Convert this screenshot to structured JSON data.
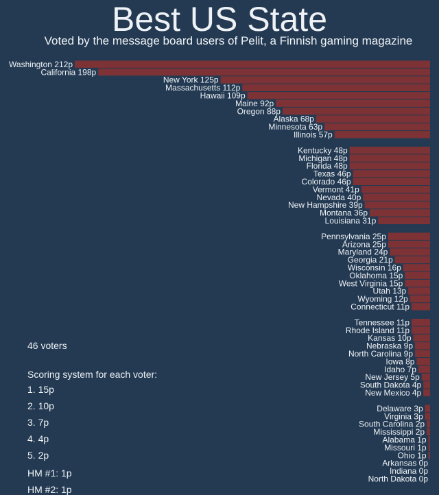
{
  "chart_data": {
    "type": "bar",
    "orientation": "horizontal",
    "title": "Best US State",
    "subtitle": "Voted by the message board users of Pelit, a Finnish gaming magazine",
    "unit_suffix": "p",
    "bar_color": "#7d3236",
    "background_color": "#243a52",
    "grid": false,
    "groups": [
      [
        [
          "Washington",
          212
        ],
        [
          "California",
          198
        ],
        [
          "New York",
          125
        ],
        [
          "Massachusetts",
          112
        ],
        [
          "Hawaii",
          109
        ],
        [
          "Maine",
          92
        ],
        [
          "Oregon",
          88
        ],
        [
          "Alaska",
          68
        ],
        [
          "Minnesota",
          63
        ],
        [
          "Illinois",
          57
        ]
      ],
      [
        [
          "Kentucky",
          48
        ],
        [
          "Michigan",
          48
        ],
        [
          "Florida",
          48
        ],
        [
          "Texas",
          46
        ],
        [
          "Colorado",
          46
        ],
        [
          "Vermont",
          41
        ],
        [
          "Nevada",
          40
        ],
        [
          "New Hampshire",
          39
        ],
        [
          "Montana",
          36
        ],
        [
          "Louisiana",
          31
        ]
      ],
      [
        [
          "Pennsylvania",
          25
        ],
        [
          "Arizona",
          25
        ],
        [
          "Maryland",
          24
        ],
        [
          "Georgia",
          21
        ],
        [
          "Wisconsin",
          16
        ],
        [
          "Oklahoma",
          15
        ],
        [
          "West Virginia",
          15
        ],
        [
          "Utah",
          13
        ],
        [
          "Wyoming",
          12
        ],
        [
          "Connecticut",
          11
        ]
      ],
      [
        [
          "Tennessee",
          11
        ],
        [
          "Rhode Island",
          11
        ],
        [
          "Kansas",
          10
        ],
        [
          "Nebraska",
          9
        ],
        [
          "North Carolina",
          9
        ],
        [
          "Iowa",
          8
        ],
        [
          "Idaho",
          7
        ],
        [
          "New Jersey",
          5
        ],
        [
          "South Dakota",
          4
        ],
        [
          "New Mexico",
          4
        ]
      ],
      [
        [
          "Delaware",
          3
        ],
        [
          "Virginia",
          3
        ],
        [
          "South Carolina",
          2
        ],
        [
          "Mississippi",
          2
        ],
        [
          "Alabama",
          1
        ],
        [
          "Missouri",
          1
        ],
        [
          "Ohio",
          1
        ],
        [
          "Arkansas",
          0
        ],
        [
          "Indiana",
          0
        ],
        [
          "North Dakota",
          0
        ]
      ]
    ]
  },
  "notes": {
    "voters": "46 voters",
    "scoring_title": "Scoring system for each voter:",
    "scoring": [
      "1. 15p",
      "2. 10p",
      "3. 7p",
      "4. 4p",
      "5. 2p",
      "HM #1: 1p",
      "HM #2: 1p"
    ]
  }
}
